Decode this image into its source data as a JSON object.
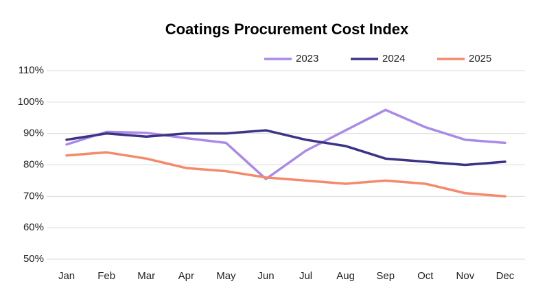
{
  "chart_data": {
    "type": "line",
    "title": "Coatings Procurement Cost Index",
    "categories": [
      "Jan",
      "Feb",
      "Mar",
      "Apr",
      "May",
      "Jun",
      "Jul",
      "Aug",
      "Sep",
      "Oct",
      "Nov",
      "Dec"
    ],
    "series": [
      {
        "name": "2023",
        "color": "#a98ae8",
        "values": [
          86.5,
          90.5,
          90.2,
          88.5,
          87,
          75.5,
          84.5,
          91,
          97.5,
          92,
          88,
          87
        ]
      },
      {
        "name": "2024",
        "color": "#3b3486",
        "values": [
          88,
          90,
          89,
          90,
          90,
          91,
          88,
          86,
          82,
          81,
          80,
          81
        ]
      },
      {
        "name": "2025",
        "color": "#f4896b",
        "values": [
          83,
          84,
          82,
          79,
          78,
          76,
          75,
          74,
          75,
          74,
          71,
          70
        ]
      }
    ],
    "ylim": [
      50,
      110
    ],
    "yticks": [
      {
        "value": 50,
        "label": "50%"
      },
      {
        "value": 60,
        "label": "60%"
      },
      {
        "value": 70,
        "label": "70%"
      },
      {
        "value": 80,
        "label": "80%"
      },
      {
        "value": 90,
        "label": "90%"
      },
      {
        "value": 100,
        "label": "100%"
      },
      {
        "value": 110,
        "label": "110%"
      }
    ],
    "grid": true,
    "legend": "top"
  }
}
